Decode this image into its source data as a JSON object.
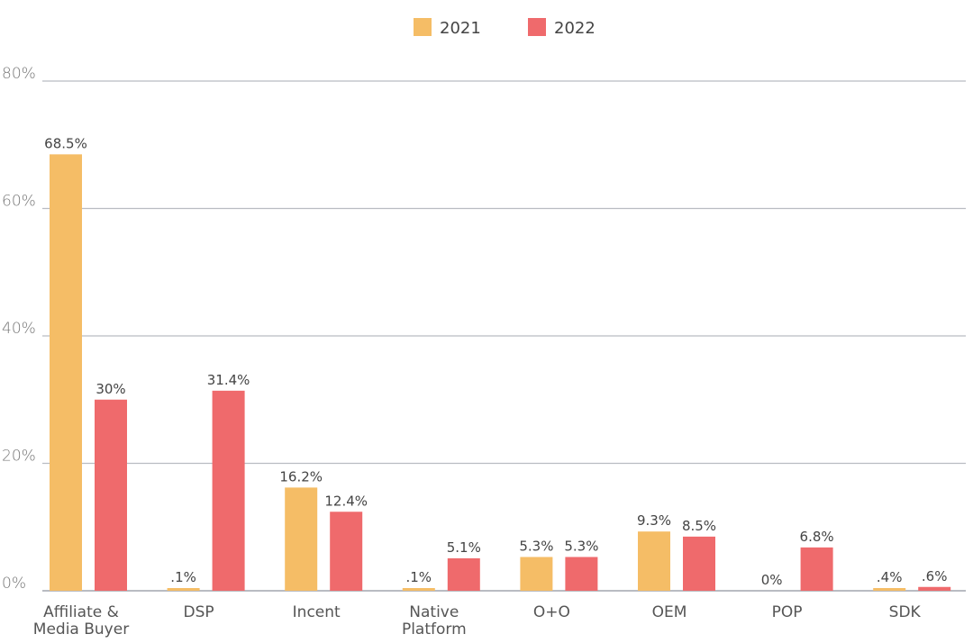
{
  "chart_data": {
    "type": "bar",
    "categories": [
      [
        "Affiliate &",
        "Media Buyer"
      ],
      [
        "DSP"
      ],
      [
        "Incent"
      ],
      [
        "Native",
        "Platform"
      ],
      [
        "O+O"
      ],
      [
        "OEM"
      ],
      [
        "POP"
      ],
      [
        "SDK"
      ]
    ],
    "series": [
      {
        "name": "2021",
        "color": "#F5BD66",
        "values": [
          68.5,
          0.1,
          16.2,
          0.1,
          5.3,
          9.3,
          0,
          0.4
        ],
        "labels": [
          "68.5%",
          ".1%",
          "16.2%",
          ".1%",
          "5.3%",
          "9.3%",
          "0%",
          ".4%"
        ]
      },
      {
        "name": "2022",
        "color": "#EF6A6C",
        "values": [
          30,
          31.4,
          12.4,
          5.1,
          5.3,
          8.5,
          6.8,
          0.6
        ],
        "labels": [
          "30%",
          "31.4%",
          "12.4%",
          "5.1%",
          "5.3%",
          "8.5%",
          "6.8%",
          ".6%"
        ]
      }
    ],
    "yticks": [
      "0%",
      "20%",
      "40%",
      "60%",
      "80%"
    ],
    "ylim": [
      0,
      80
    ],
    "grid": true,
    "legend": "top-center",
    "xlabel": "",
    "ylabel": "",
    "title": ""
  }
}
